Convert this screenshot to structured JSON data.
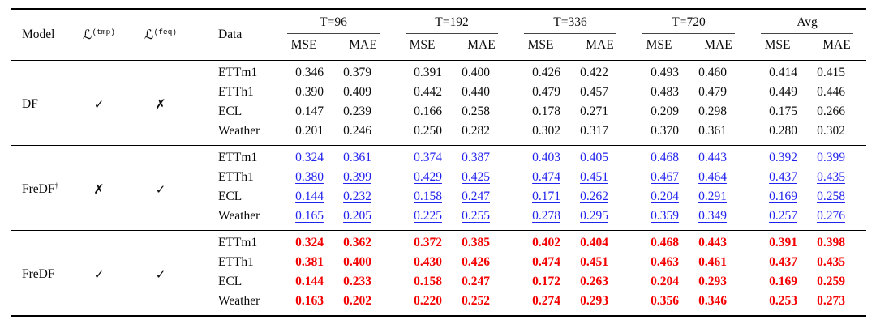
{
  "table": {
    "header": {
      "model": "Model",
      "loss_symbol": "ℒ",
      "loss_tmp_sup": "(tmp)",
      "loss_feq_sup": "(feq)",
      "data": "Data",
      "groups": [
        "T=96",
        "T=192",
        "T=336",
        "T=720",
        "Avg"
      ],
      "metrics": [
        "MSE",
        "MAE"
      ]
    },
    "symbols": {
      "check": "✓",
      "cross": "✗",
      "dagger": "†"
    },
    "colors": {
      "highlight_blue": "#2222ee",
      "highlight_red": "#f40000",
      "rule": "#000000"
    },
    "blocks": [
      {
        "model": "DF",
        "model_sup": "",
        "loss_tmp": "check",
        "loss_feq": "cross",
        "style": "plain",
        "rows": [
          {
            "dataset": "ETTm1",
            "values": [
              "0.346",
              "0.379",
              "0.391",
              "0.400",
              "0.426",
              "0.422",
              "0.493",
              "0.460",
              "0.414",
              "0.415"
            ]
          },
          {
            "dataset": "ETTh1",
            "values": [
              "0.390",
              "0.409",
              "0.442",
              "0.440",
              "0.479",
              "0.457",
              "0.483",
              "0.479",
              "0.449",
              "0.446"
            ]
          },
          {
            "dataset": "ECL",
            "values": [
              "0.147",
              "0.239",
              "0.166",
              "0.258",
              "0.178",
              "0.271",
              "0.209",
              "0.298",
              "0.175",
              "0.266"
            ]
          },
          {
            "dataset": "Weather",
            "values": [
              "0.201",
              "0.246",
              "0.250",
              "0.282",
              "0.302",
              "0.317",
              "0.370",
              "0.361",
              "0.280",
              "0.302"
            ]
          }
        ]
      },
      {
        "model": "FreDF",
        "model_sup": "†",
        "loss_tmp": "cross",
        "loss_feq": "check",
        "style": "blue-underline",
        "rows": [
          {
            "dataset": "ETTm1",
            "values": [
              "0.324",
              "0.361",
              "0.374",
              "0.387",
              "0.403",
              "0.405",
              "0.468",
              "0.443",
              "0.392",
              "0.399"
            ]
          },
          {
            "dataset": "ETTh1",
            "values": [
              "0.380",
              "0.399",
              "0.429",
              "0.425",
              "0.474",
              "0.451",
              "0.467",
              "0.464",
              "0.437",
              "0.435"
            ]
          },
          {
            "dataset": "ECL",
            "values": [
              "0.144",
              "0.232",
              "0.158",
              "0.247",
              "0.171",
              "0.262",
              "0.204",
              "0.291",
              "0.169",
              "0.258"
            ]
          },
          {
            "dataset": "Weather",
            "values": [
              "0.165",
              "0.205",
              "0.225",
              "0.255",
              "0.278",
              "0.295",
              "0.359",
              "0.349",
              "0.257",
              "0.276"
            ]
          }
        ]
      },
      {
        "model": "FreDF",
        "model_sup": "",
        "loss_tmp": "check",
        "loss_feq": "check",
        "style": "red-bold",
        "rows": [
          {
            "dataset": "ETTm1",
            "values": [
              "0.324",
              "0.362",
              "0.372",
              "0.385",
              "0.402",
              "0.404",
              "0.468",
              "0.443",
              "0.391",
              "0.398"
            ]
          },
          {
            "dataset": "ETTh1",
            "values": [
              "0.381",
              "0.400",
              "0.430",
              "0.426",
              "0.474",
              "0.451",
              "0.463",
              "0.461",
              "0.437",
              "0.435"
            ]
          },
          {
            "dataset": "ECL",
            "values": [
              "0.144",
              "0.233",
              "0.158",
              "0.247",
              "0.172",
              "0.263",
              "0.204",
              "0.293",
              "0.169",
              "0.259"
            ]
          },
          {
            "dataset": "Weather",
            "values": [
              "0.163",
              "0.202",
              "0.220",
              "0.252",
              "0.274",
              "0.293",
              "0.356",
              "0.346",
              "0.253",
              "0.273"
            ]
          }
        ]
      }
    ]
  }
}
